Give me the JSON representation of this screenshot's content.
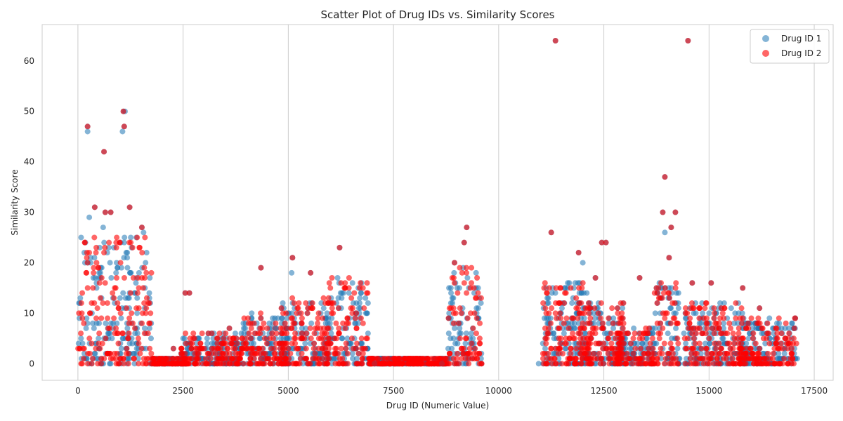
{
  "chart_data": {
    "type": "scatter",
    "title": "Scatter Plot of Drug IDs vs. Similarity Scores",
    "xlabel": "Drug ID (Numeric Value)",
    "ylabel": "Similarity Score",
    "xlim": [
      -850,
      17950
    ],
    "ylim": [
      -3.3,
      67.2
    ],
    "xticks": [
      0,
      2500,
      5000,
      7500,
      10000,
      12500,
      15000,
      17500
    ],
    "xtick_labels": [
      "0",
      "2500",
      "5000",
      "7500",
      "10000",
      "12500",
      "15000",
      "17500"
    ],
    "yticks": [
      0,
      10,
      20,
      30,
      40,
      50,
      60
    ],
    "ytick_labels": [
      "0",
      "10",
      "20",
      "30",
      "40",
      "50",
      "60"
    ],
    "grid": "vertical gridlines only",
    "legend_position": "top-right",
    "series": [
      {
        "name": "Drug ID 1",
        "color": "#1f77b4",
        "points": [
          [
            230,
            47
          ],
          [
            230,
            46
          ],
          [
            620,
            42
          ],
          [
            1080,
            50
          ],
          [
            1120,
            50
          ],
          [
            1100,
            47
          ],
          [
            1060,
            46
          ],
          [
            400,
            31
          ],
          [
            1230,
            31
          ],
          [
            270,
            29
          ],
          [
            780,
            30
          ],
          [
            650,
            30
          ],
          [
            600,
            27
          ],
          [
            1520,
            27
          ],
          [
            1560,
            26
          ],
          [
            11350,
            64
          ],
          [
            14500,
            64
          ],
          [
            13950,
            37
          ],
          [
            14200,
            30
          ],
          [
            14100,
            27
          ],
          [
            11250,
            26
          ],
          [
            9240,
            27
          ],
          [
            9180,
            24
          ],
          [
            6220,
            23
          ],
          [
            5100,
            21
          ],
          [
            5080,
            18
          ],
          [
            4350,
            19
          ],
          [
            5530,
            18
          ],
          [
            11900,
            22
          ],
          [
            12000,
            20
          ],
          [
            13900,
            30
          ],
          [
            13950,
            26
          ],
          [
            14050,
            21
          ],
          [
            12450,
            24
          ],
          [
            12550,
            24
          ],
          [
            13350,
            17
          ],
          [
            8950,
            20
          ],
          [
            8940,
            18
          ],
          [
            6700,
            13
          ],
          [
            2550,
            14
          ],
          [
            2650,
            14
          ],
          [
            3600,
            7
          ],
          [
            3100,
            6
          ],
          [
            2270,
            3
          ],
          [
            7050,
            0
          ],
          [
            8650,
            0
          ],
          [
            16200,
            11
          ],
          [
            17050,
            9
          ],
          [
            15800,
            15
          ],
          [
            14600,
            16
          ],
          [
            15050,
            16
          ],
          [
            4700,
            7
          ],
          [
            8800,
            3
          ],
          [
            10950,
            0
          ],
          [
            13750,
            15
          ],
          [
            12300,
            17
          ]
        ]
      },
      {
        "name": "Drug ID 2",
        "color": "#ff0000",
        "points": [
          [
            230,
            47
          ],
          [
            620,
            42
          ],
          [
            1080,
            50
          ],
          [
            1100,
            47
          ],
          [
            400,
            31
          ],
          [
            1230,
            31
          ],
          [
            780,
            30
          ],
          [
            650,
            30
          ],
          [
            11350,
            64
          ],
          [
            14500,
            64
          ],
          [
            13950,
            37
          ],
          [
            14200,
            30
          ],
          [
            14100,
            27
          ],
          [
            11250,
            26
          ],
          [
            9240,
            27
          ],
          [
            6220,
            23
          ],
          [
            5100,
            21
          ],
          [
            4350,
            19
          ],
          [
            5530,
            18
          ],
          [
            11900,
            22
          ],
          [
            12450,
            24
          ],
          [
            12550,
            24
          ],
          [
            13350,
            17
          ],
          [
            8950,
            20
          ],
          [
            2550,
            14
          ],
          [
            2650,
            14
          ],
          [
            3600,
            7
          ],
          [
            3100,
            6
          ],
          [
            2270,
            3
          ],
          [
            7050,
            0
          ],
          [
            8650,
            0
          ],
          [
            16200,
            11
          ],
          [
            17050,
            9
          ],
          [
            15800,
            15
          ],
          [
            14600,
            16
          ],
          [
            15050,
            16
          ],
          [
            13750,
            15
          ],
          [
            12300,
            17
          ],
          [
            1520,
            27
          ],
          [
            9180,
            24
          ],
          [
            13900,
            30
          ],
          [
            14050,
            21
          ]
        ]
      }
    ],
    "dense_regions": [
      {
        "xmin": 0,
        "xmax": 1750,
        "ymin": 0,
        "ymax": 25
      },
      {
        "xmin": 1750,
        "xmax": 2600,
        "ymin": 0,
        "ymax": 1
      },
      {
        "xmin": 2450,
        "xmax": 3900,
        "ymin": 0,
        "ymax": 6
      },
      {
        "xmin": 3900,
        "xmax": 5000,
        "ymin": 0,
        "ymax": 10
      },
      {
        "xmin": 4800,
        "xmax": 6000,
        "ymin": 0,
        "ymax": 13
      },
      {
        "xmin": 5900,
        "xmax": 6900,
        "ymin": 0,
        "ymax": 17
      },
      {
        "xmin": 6900,
        "xmax": 8800,
        "ymin": 0,
        "ymax": 1
      },
      {
        "xmin": 8800,
        "xmax": 9600,
        "ymin": 0,
        "ymax": 19
      },
      {
        "xmin": 11050,
        "xmax": 12200,
        "ymin": 0,
        "ymax": 16
      },
      {
        "xmin": 11700,
        "xmax": 13000,
        "ymin": 0,
        "ymax": 12
      },
      {
        "xmin": 12800,
        "xmax": 13700,
        "ymin": 0,
        "ymax": 7
      },
      {
        "xmin": 13700,
        "xmax": 14300,
        "ymin": 0,
        "ymax": 16
      },
      {
        "xmin": 14400,
        "xmax": 15900,
        "ymin": 0,
        "ymax": 12
      },
      {
        "xmin": 15700,
        "xmax": 17100,
        "ymin": 0,
        "ymax": 9
      }
    ]
  }
}
